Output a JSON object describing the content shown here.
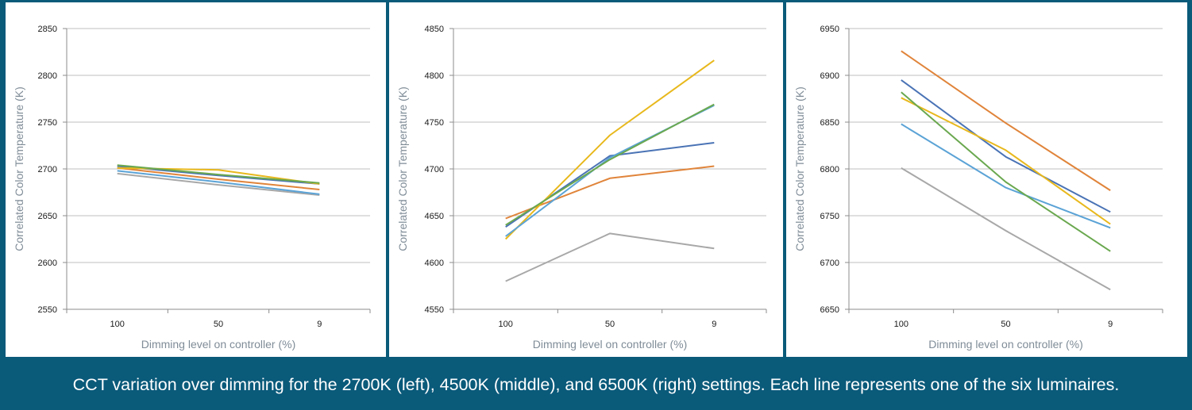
{
  "caption": "CCT variation over dimming for the 2700K (left), 4500K (middle), and 6500K (right) settings. Each line represents one of the six luminaires.",
  "colors": {
    "series": [
      "#4a73b5",
      "#e0843a",
      "#a8a8a8",
      "#e8b81c",
      "#5ba3d6",
      "#6aa84f"
    ],
    "gridline": "#bfbfbf",
    "frame": "#0a5a7a"
  },
  "chart_data": [
    {
      "type": "line",
      "xlabel": "Dimming level on controller (%)",
      "ylabel": "Correlated Color Temperature (K)",
      "x": [
        "100",
        "50",
        "9"
      ],
      "ylim": [
        2550,
        2850
      ],
      "yticks": [
        "2550",
        "2600",
        "2650",
        "2700",
        "2750",
        "2800",
        "2850"
      ],
      "grid": true,
      "series": [
        {
          "values": [
            2703,
            2693,
            2684
          ]
        },
        {
          "values": [
            2701,
            2689,
            2678
          ]
        },
        {
          "values": [
            2695,
            2683,
            2672
          ]
        },
        {
          "values": [
            2701,
            2699,
            2684
          ]
        },
        {
          "values": [
            2698,
            2686,
            2673
          ]
        },
        {
          "values": [
            2704,
            2694,
            2685
          ]
        }
      ]
    },
    {
      "type": "line",
      "xlabel": "Dimming level on controller (%)",
      "ylabel": "Correlated Color Temperature (K)",
      "x": [
        "100",
        "50",
        "9"
      ],
      "ylim": [
        4550,
        4850
      ],
      "yticks": [
        "4550",
        "4600",
        "4650",
        "4700",
        "4750",
        "4800",
        "4850"
      ],
      "grid": true,
      "series": [
        {
          "values": [
            4638,
            4714,
            4728
          ]
        },
        {
          "values": [
            4647,
            4690,
            4703
          ]
        },
        {
          "values": [
            4580,
            4631,
            4615
          ]
        },
        {
          "values": [
            4625,
            4736,
            4816
          ]
        },
        {
          "values": [
            4628,
            4712,
            4768
          ]
        },
        {
          "values": [
            4640,
            4710,
            4769
          ]
        }
      ]
    },
    {
      "type": "line",
      "xlabel": "Dimming level on controller (%)",
      "ylabel": "Correlated Color Temperature (K)",
      "x": [
        "100",
        "50",
        "9"
      ],
      "ylim": [
        6650,
        6950
      ],
      "yticks": [
        "6650",
        "6700",
        "6750",
        "6800",
        "6850",
        "6900",
        "6950"
      ],
      "grid": true,
      "series": [
        {
          "values": [
            6895,
            6813,
            6754
          ]
        },
        {
          "values": [
            6926,
            6849,
            6777
          ]
        },
        {
          "values": [
            6801,
            6734,
            6671
          ]
        },
        {
          "values": [
            6876,
            6820,
            6741
          ]
        },
        {
          "values": [
            6848,
            6780,
            6737
          ]
        },
        {
          "values": [
            6882,
            6786,
            6712
          ]
        }
      ]
    }
  ]
}
